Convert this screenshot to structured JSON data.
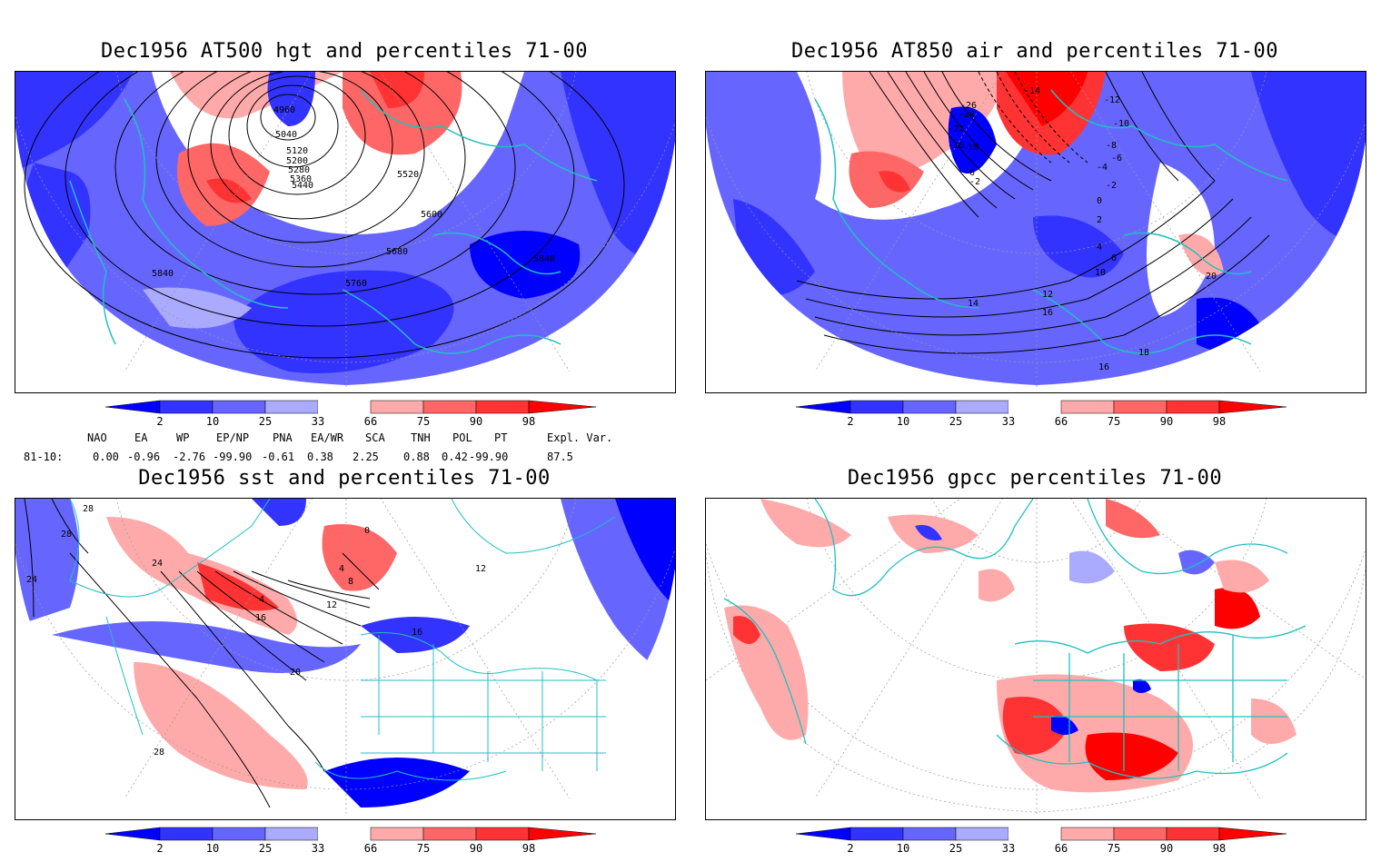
{
  "panels": [
    {
      "title": "Dec1956 AT500 hgt and percentiles 71-00",
      "contour_labels": [
        "4960",
        "5040",
        "5120",
        "5200",
        "5280",
        "5360",
        "5440",
        "5520",
        "5600",
        "5680",
        "5760",
        "5840",
        "5840"
      ]
    },
    {
      "title": "Dec1956 AT850 air and percentiles 71-00",
      "contour_labels": [
        "-14",
        "-12",
        "-10",
        "-8",
        "-6",
        "-4",
        "-2",
        "0",
        "2",
        "4",
        "6",
        "10",
        "12",
        "14",
        "16",
        "16",
        "18",
        "20",
        "-26",
        "-24",
        "-22",
        "-18",
        "-16",
        "-6",
        "-2"
      ]
    },
    {
      "title": "Dec1956 sst and percentiles 71-00",
      "contour_labels": [
        "28",
        "28",
        "24",
        "24",
        "16",
        "20",
        "28",
        "12",
        "8",
        "4",
        "0",
        "4",
        "12",
        "16"
      ]
    },
    {
      "title": "Dec1956 gpcc percentiles 71-00",
      "contour_labels": []
    }
  ],
  "colorbar": {
    "labels": [
      "2",
      "10",
      "25",
      "33",
      "66",
      "75",
      "90",
      "98"
    ],
    "colors": [
      "#0000ff",
      "#3333ff",
      "#6666ff",
      "#aaaaff",
      "#ffffff",
      "#ffaaaa",
      "#ff6666",
      "#ff3333",
      "#ff0000"
    ]
  },
  "indices": {
    "names": [
      "NAO",
      "EA",
      "WP",
      "EP/NP",
      "PNA",
      "EA/WR",
      "SCA",
      "TNH",
      "POL",
      "PT",
      "Expl. Var."
    ],
    "row_label": "81-10:",
    "values": [
      "0.00",
      "-0.96",
      "-2.76",
      "-99.90",
      "-0.61",
      "0.38",
      "2.25",
      "0.88",
      "0.42",
      "-99.90",
      "87.5"
    ]
  }
}
